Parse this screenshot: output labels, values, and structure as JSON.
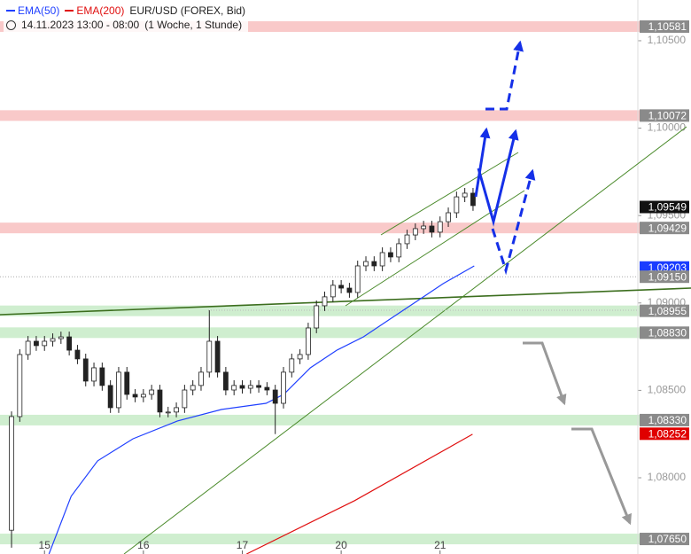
{
  "chart_data": {
    "type": "candlestick",
    "title": "EUR/USD (FOREX, Bid)",
    "subtitle": "14.11.2023 13:00 - 08:00",
    "period": "(1 Woche, 1 Stunde)",
    "x": [
      -4,
      -3,
      -2,
      -1,
      0,
      1,
      2,
      3,
      4,
      5,
      6,
      7,
      8,
      9,
      10,
      11,
      12,
      13,
      14,
      15,
      16,
      17,
      18,
      19,
      20,
      21,
      22,
      23,
      24,
      25,
      26,
      27,
      28,
      29,
      30,
      31,
      32,
      33,
      34,
      35,
      36,
      37,
      38,
      39,
      40,
      41,
      42,
      43,
      44,
      45,
      46,
      47,
      48,
      49,
      50,
      51,
      52
    ],
    "open": [
      1.077,
      1.0835,
      1.08705,
      1.08781,
      1.08756,
      1.08781,
      1.08796,
      1.08806,
      1.0873,
      1.0868,
      1.08553,
      1.08629,
      1.08528,
      1.08401,
      1.08604,
      1.08477,
      1.08462,
      1.08477,
      1.08502,
      1.08376,
      1.08376,
      1.08401,
      1.08502,
      1.08528,
      1.08604,
      1.08781,
      1.08604,
      1.08502,
      1.08528,
      1.08512,
      1.08528,
      1.08517,
      1.08502,
      1.08426,
      1.08604,
      1.0868,
      1.08705,
      1.08857,
      1.08984,
      1.09035,
      1.09101,
      1.09085,
      1.0906,
      1.09212,
      1.09237,
      1.09212,
      1.09288,
      1.09263,
      1.09339,
      1.09389,
      1.09425,
      1.0944,
      1.09405,
      1.09465,
      1.09516,
      1.09607,
      1.09628
    ],
    "high": [
      1.0838,
      1.08735,
      1.08811,
      1.08811,
      1.08811,
      1.08826,
      1.08836,
      1.08836,
      1.0876,
      1.0871,
      1.08659,
      1.08659,
      1.08558,
      1.08634,
      1.08634,
      1.08507,
      1.08507,
      1.08532,
      1.08532,
      1.08406,
      1.08431,
      1.08532,
      1.08558,
      1.08634,
      1.08958,
      1.08811,
      1.08634,
      1.08558,
      1.08558,
      1.08558,
      1.08558,
      1.08547,
      1.08532,
      1.08634,
      1.0871,
      1.08735,
      1.08887,
      1.09014,
      1.09065,
      1.09131,
      1.09131,
      1.09115,
      1.09242,
      1.09267,
      1.09267,
      1.09318,
      1.09318,
      1.09369,
      1.09419,
      1.09455,
      1.0947,
      1.0947,
      1.09495,
      1.09546,
      1.09637,
      1.09658,
      1.09658
    ],
    "low": [
      1.076,
      1.0832,
      1.08675,
      1.08726,
      1.08726,
      1.08751,
      1.08766,
      1.087,
      1.0865,
      1.08523,
      1.08523,
      1.08498,
      1.08371,
      1.08371,
      1.08447,
      1.08432,
      1.08432,
      1.08447,
      1.08346,
      1.08346,
      1.08346,
      1.08371,
      1.08472,
      1.08498,
      1.08574,
      1.08574,
      1.08472,
      1.08472,
      1.08482,
      1.08482,
      1.08487,
      1.08472,
      1.0825,
      1.08396,
      1.08574,
      1.0865,
      1.08675,
      1.08827,
      1.08954,
      1.09005,
      1.09055,
      1.0903,
      1.0903,
      1.09182,
      1.09182,
      1.09182,
      1.09233,
      1.09233,
      1.09309,
      1.09359,
      1.09395,
      1.09375,
      1.09375,
      1.09435,
      1.09486,
      1.09577,
      1.09527
    ],
    "close": [
      1.0835,
      1.08705,
      1.08781,
      1.08756,
      1.08781,
      1.08796,
      1.08806,
      1.0873,
      1.0868,
      1.08553,
      1.08629,
      1.08528,
      1.08401,
      1.08604,
      1.08477,
      1.08462,
      1.08477,
      1.08502,
      1.08376,
      1.08376,
      1.08401,
      1.08502,
      1.08528,
      1.08604,
      1.08781,
      1.08604,
      1.08502,
      1.08528,
      1.08512,
      1.08528,
      1.08517,
      1.08502,
      1.08426,
      1.08604,
      1.0868,
      1.08705,
      1.08857,
      1.08984,
      1.09035,
      1.09101,
      1.09085,
      1.0906,
      1.09212,
      1.09237,
      1.09212,
      1.09288,
      1.09263,
      1.09339,
      1.09389,
      1.09425,
      1.0944,
      1.09405,
      1.09465,
      1.09516,
      1.09607,
      1.09628,
      1.09557
    ],
    "up_color": "#ffffff",
    "down_color": "#222222",
    "wick_color": "#222222",
    "series": [
      {
        "name": "EMA(50)",
        "color": "#2040ff",
        "x": [
          0.54,
          3.23,
          6.45,
          10.75,
          16.13,
          21.51,
          26.88,
          29.03,
          32.26,
          35.48,
          38.71,
          41.94,
          45.16,
          48.39,
          52.15
        ],
        "values": [
          1.07564,
          1.07894,
          1.08097,
          1.08223,
          1.08325,
          1.08391,
          1.08426,
          1.08477,
          1.08629,
          1.0873,
          1.08806,
          1.08908,
          1.09009,
          1.09111,
          1.09212
        ]
      },
      {
        "name": "EMA(200)",
        "color": "#e01010",
        "x": [
          24.52,
          37.63,
          51.94
        ],
        "values": [
          1.07564,
          1.07869,
          1.08249
        ]
      }
    ],
    "levels": [
      {
        "value": 1.10581,
        "label": "1,10581",
        "label_color": "#8a8a8a",
        "band_color": "#f7b7b7"
      },
      {
        "value": 1.10072,
        "label": "1,10072",
        "label_color": "#8a8a8a",
        "band_color": "#f7b7b7"
      },
      {
        "value": 1.09549,
        "label": "1,09549",
        "label_color": "#111111"
      },
      {
        "value": 1.09429,
        "label": "1,09429",
        "label_color": "#8a8a8a",
        "band_color": "#f7b7b7"
      },
      {
        "value": 1.09203,
        "label": "1,09203",
        "label_color": "#1a3cff"
      },
      {
        "value": 1.0915,
        "label": "1,09150",
        "label_color": "#8a8a8a",
        "line_color": "#aaaaaa"
      },
      {
        "value": 1.08955,
        "label": "1,08955",
        "label_color": "#8a8a8a",
        "band_color": "#bfe8bf"
      },
      {
        "value": 1.0883,
        "label": "1,08830",
        "label_color": "#8a8a8a",
        "band_color": "#bfe8bf"
      },
      {
        "value": 1.0833,
        "label": "1,08330",
        "label_color": "#8a8a8a",
        "band_color": "#bfe8bf"
      },
      {
        "value": 1.08252,
        "label": "1,08252",
        "label_color": "#e00000"
      },
      {
        "value": 1.0765,
        "label": "1,07650",
        "label_color": "#8a8a8a",
        "band_color": "#bfe8bf"
      }
    ],
    "xlim": [
      -5.4,
      72
    ],
    "ylim": [
      1.07564,
      1.10733
    ],
    "xticks": [
      {
        "value": 0,
        "label": "15"
      },
      {
        "value": 12,
        "label": "16"
      },
      {
        "value": 24,
        "label": "17"
      },
      {
        "value": 36,
        "label": "20"
      },
      {
        "value": 48,
        "label": "21"
      }
    ],
    "yticks": [
      {
        "value": 1.105,
        "label": "1,10500"
      },
      {
        "value": 1.1,
        "label": "1,10000"
      },
      {
        "value": 1.095,
        "label": "1,09500"
      },
      {
        "value": 1.09,
        "label": "1,09000"
      },
      {
        "value": 1.085,
        "label": "1,08500"
      },
      {
        "value": 1.08,
        "label": "1,08000"
      }
    ]
  }
}
